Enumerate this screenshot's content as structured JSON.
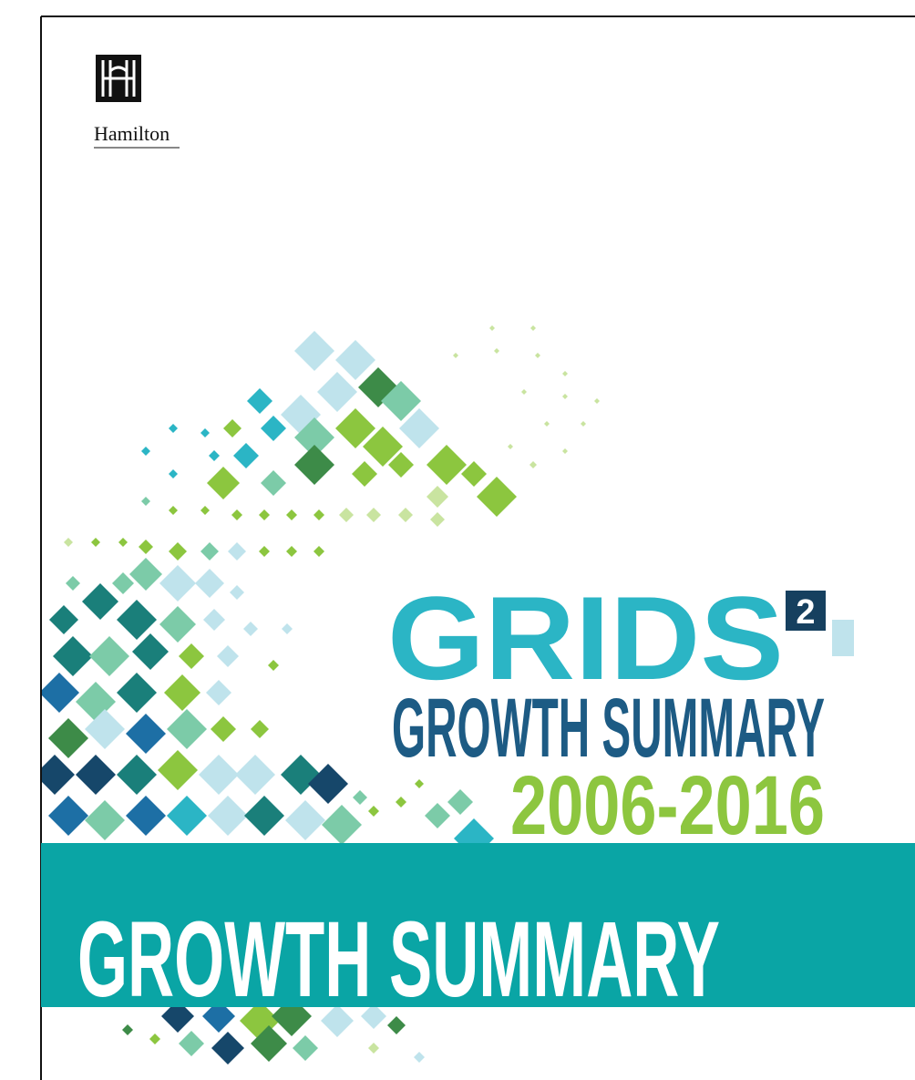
{
  "logo": {
    "text": "Hamilton"
  },
  "cover": {
    "brand": "GRIDS",
    "brand_superscript": "2",
    "subtitle": "GROWTH SUMMARY",
    "years": "2006-2016"
  },
  "banner": {
    "title": "GROWTH SUMMARY"
  }
}
